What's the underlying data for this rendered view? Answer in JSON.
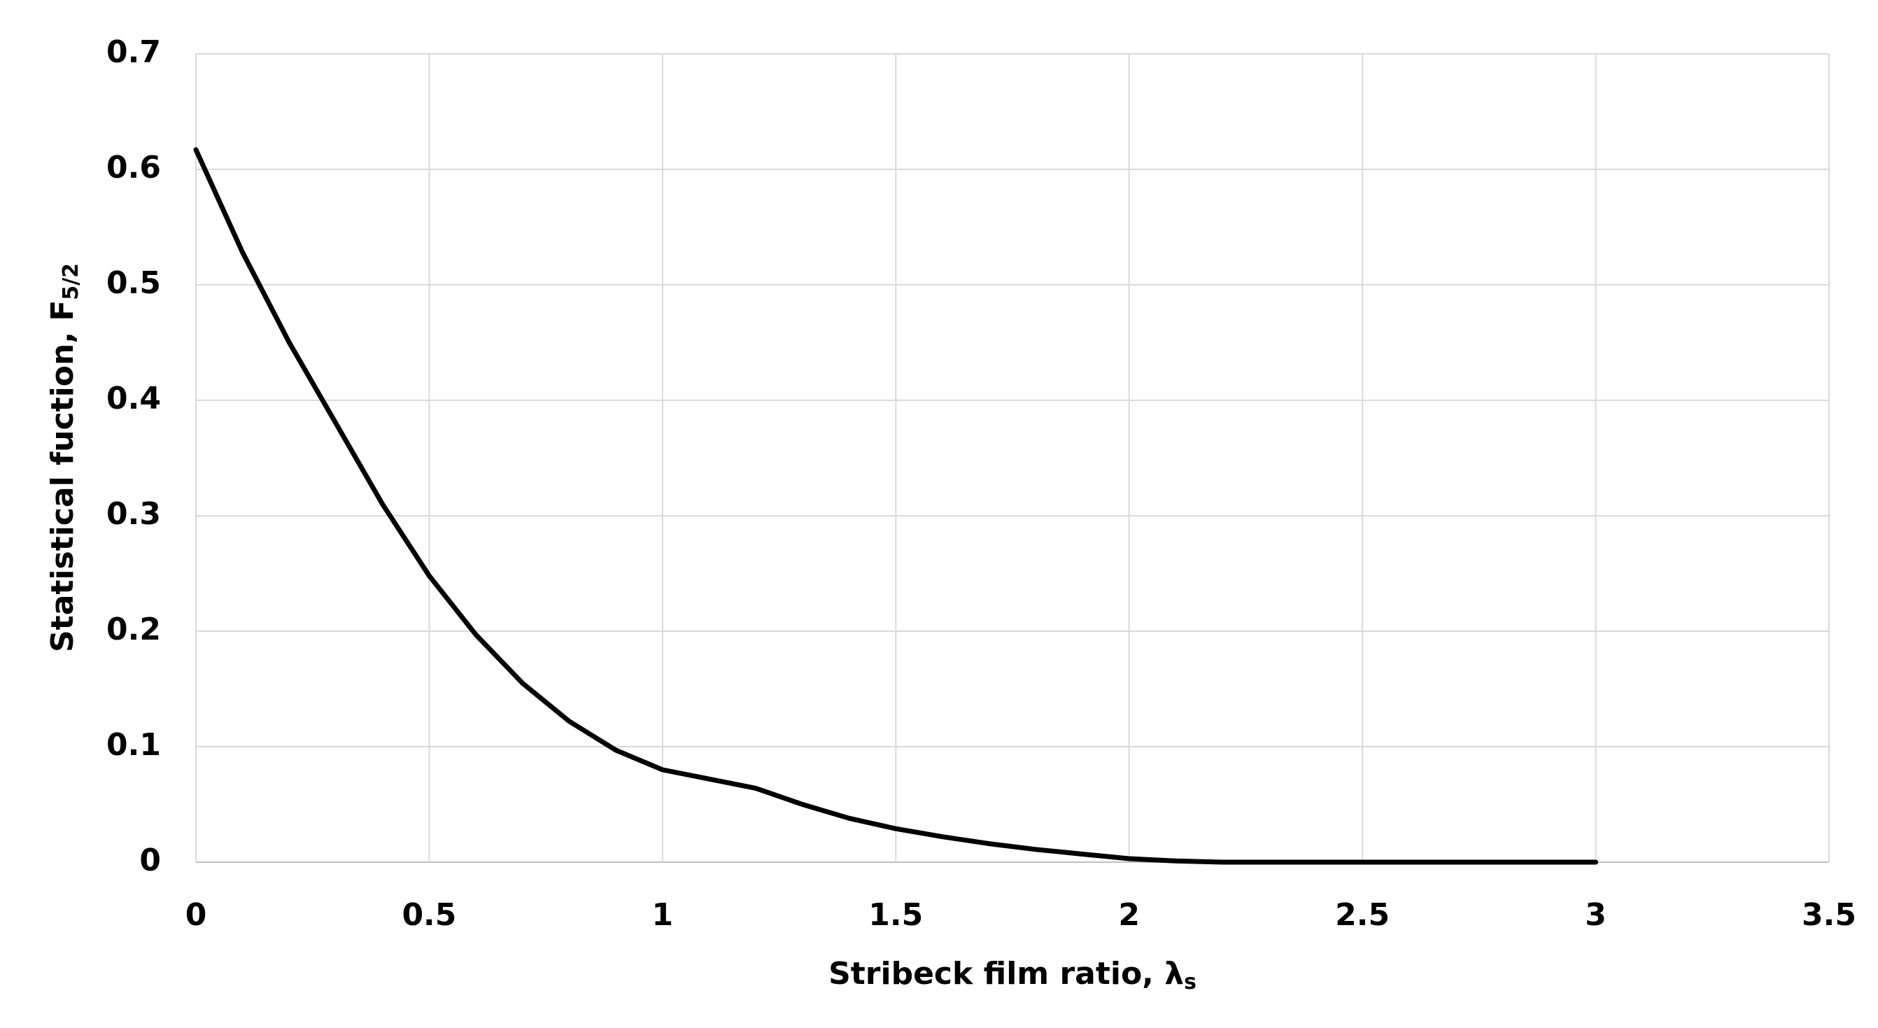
{
  "chart_data": {
    "type": "line",
    "x_label": "Stribeck film ratio, λ",
    "x_label_subscript": "s",
    "y_label": "Statistical fuction, F",
    "y_label_subscript": "5/2",
    "x": [
      0,
      0.1,
      0.2,
      0.3,
      0.4,
      0.5,
      0.6,
      0.7,
      0.8,
      0.9,
      1.0,
      1.1,
      1.2,
      1.3,
      1.4,
      1.5,
      1.6,
      1.7,
      1.8,
      1.9,
      2.0,
      2.1,
      2.2,
      2.3,
      2.4,
      2.5,
      2.6,
      2.7,
      2.8,
      2.9,
      3.0
    ],
    "values": [
      0.617,
      0.528,
      0.45,
      0.38,
      0.31,
      0.248,
      0.197,
      0.155,
      0.122,
      0.097,
      0.08,
      0.072,
      0.064,
      0.05,
      0.038,
      0.029,
      0.022,
      0.016,
      0.011,
      0.007,
      0.003,
      0.001,
      0,
      0,
      0,
      0,
      0,
      0,
      0,
      0,
      0
    ],
    "color": "#000000",
    "xlim": [
      0,
      3.5
    ],
    "xticks": [
      0,
      0.5,
      1,
      1.5,
      2,
      2.5,
      3,
      3.5
    ],
    "ylim": [
      0,
      0.7
    ],
    "yticks": [
      0,
      0.1,
      0.2,
      0.3,
      0.4,
      0.5,
      0.6,
      0.7
    ],
    "grid": true
  }
}
